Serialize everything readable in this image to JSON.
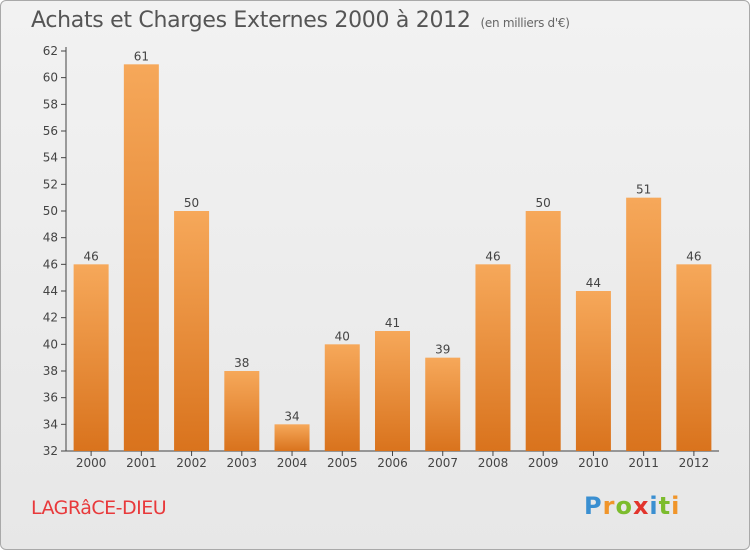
{
  "title": "Achats et Charges Externes 2000 à 2012",
  "subtitle": "(en milliers d'€)",
  "commune": "LAGRâCE-DIEU",
  "logo": "Proxiti",
  "colors": {
    "bar_top": "#f6a85a",
    "bar_bottom": "#d9731d",
    "commune": "#e8393b",
    "axis": "#444444"
  },
  "chart_data": {
    "type": "bar",
    "categories": [
      "2000",
      "2001",
      "2002",
      "2003",
      "2004",
      "2005",
      "2006",
      "2007",
      "2008",
      "2009",
      "2010",
      "2011",
      "2012"
    ],
    "values": [
      46,
      61,
      50,
      38,
      34,
      40,
      41,
      39,
      46,
      50,
      44,
      51,
      46
    ],
    "ylim": [
      32,
      62
    ],
    "yticks": [
      32,
      34,
      36,
      38,
      40,
      42,
      44,
      46,
      48,
      50,
      52,
      54,
      56,
      58,
      60,
      62
    ],
    "grid": false,
    "xlabel": "",
    "ylabel": ""
  }
}
